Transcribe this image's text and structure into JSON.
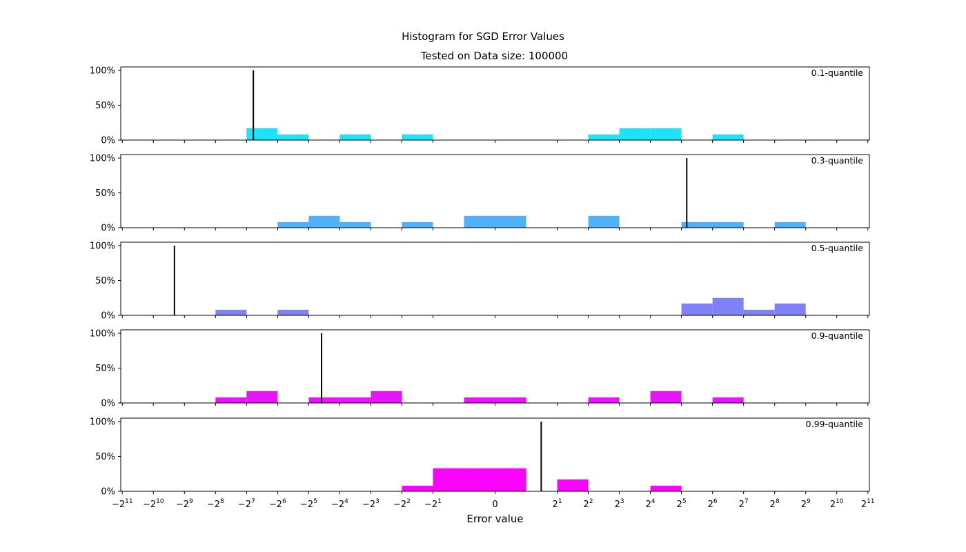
{
  "chart_data": {
    "type": "bar",
    "title": "Histogram for SGD Error Values",
    "subtitle": "Tested on Data size: 100000",
    "xlabel": "Error value",
    "x_scale": "symlog base 2",
    "x_tick_labels": [
      "−2^11",
      "−2^10",
      "−2^9",
      "−2^8",
      "−2^7",
      "−2^6",
      "−2^5",
      "−2^4",
      "−2^3",
      "−2^2",
      "−2^1",
      "0",
      "2^1",
      "2^2",
      "2^3",
      "2^4",
      "2^5",
      "2^6",
      "2^7",
      "2^8",
      "2^9",
      "2^10",
      "2^11"
    ],
    "y_tick_labels": [
      "0%",
      "50%",
      "100%"
    ],
    "ylim": [
      0,
      1.05
    ],
    "bin_edges": [
      -2048,
      -1024,
      -512,
      -256,
      -128,
      -64,
      -32,
      -16,
      -8,
      -4,
      -2,
      -1,
      0,
      1,
      2,
      4,
      8,
      16,
      32,
      64,
      128,
      256,
      512,
      1024,
      2048
    ],
    "panels": [
      {
        "label": "0.1-quantile",
        "color": "#1ee3f8",
        "quantile_marker": -110,
        "bins": [
          {
            "from": -128,
            "to": -64,
            "value": 0.17
          },
          {
            "from": -64,
            "to": -32,
            "value": 0.08
          },
          {
            "from": -16,
            "to": -8,
            "value": 0.08
          },
          {
            "from": -4,
            "to": -2,
            "value": 0.08
          },
          {
            "from": 4,
            "to": 8,
            "value": 0.08
          },
          {
            "from": 8,
            "to": 16,
            "value": 0.17
          },
          {
            "from": 16,
            "to": 32,
            "value": 0.17
          },
          {
            "from": 64,
            "to": 128,
            "value": 0.08
          }
        ]
      },
      {
        "label": "0.3-quantile",
        "color": "#4db2f8",
        "quantile_marker": 36,
        "bins": [
          {
            "from": -64,
            "to": -32,
            "value": 0.08
          },
          {
            "from": -32,
            "to": -16,
            "value": 0.17
          },
          {
            "from": -16,
            "to": -8,
            "value": 0.08
          },
          {
            "from": -4,
            "to": -2,
            "value": 0.08
          },
          {
            "from": -1,
            "to": 0,
            "value": 0.17
          },
          {
            "from": 0,
            "to": 1,
            "value": 0.17
          },
          {
            "from": 4,
            "to": 8,
            "value": 0.17
          },
          {
            "from": 32,
            "to": 64,
            "value": 0.08
          },
          {
            "from": 64,
            "to": 128,
            "value": 0.08
          },
          {
            "from": 256,
            "to": 512,
            "value": 0.08
          }
        ]
      },
      {
        "label": "0.5-quantile",
        "color": "#8080f8",
        "quantile_marker": -640,
        "bins": [
          {
            "from": -256,
            "to": -128,
            "value": 0.08
          },
          {
            "from": -64,
            "to": -32,
            "value": 0.08
          },
          {
            "from": 32,
            "to": 64,
            "value": 0.17
          },
          {
            "from": 64,
            "to": 128,
            "value": 0.25
          },
          {
            "from": 128,
            "to": 256,
            "value": 0.08
          },
          {
            "from": 256,
            "to": 512,
            "value": 0.17
          }
        ]
      },
      {
        "label": "0.9-quantile",
        "color": "#ea14f8",
        "quantile_marker": -24,
        "bins": [
          {
            "from": -256,
            "to": -128,
            "value": 0.08
          },
          {
            "from": -128,
            "to": -64,
            "value": 0.17
          },
          {
            "from": -32,
            "to": -16,
            "value": 0.08
          },
          {
            "from": -16,
            "to": -8,
            "value": 0.08
          },
          {
            "from": -8,
            "to": -4,
            "value": 0.17
          },
          {
            "from": -1,
            "to": 0,
            "value": 0.08
          },
          {
            "from": 0,
            "to": 1,
            "value": 0.08
          },
          {
            "from": 4,
            "to": 8,
            "value": 0.08
          },
          {
            "from": 16,
            "to": 32,
            "value": 0.17
          },
          {
            "from": 64,
            "to": 128,
            "value": 0.08
          }
        ]
      },
      {
        "label": "0.99-quantile",
        "color": "#ff00ff",
        "quantile_marker": 1.4,
        "bins": [
          {
            "from": -4,
            "to": -2,
            "value": 0.08
          },
          {
            "from": -2,
            "to": -1,
            "value": 0.33
          },
          {
            "from": -1,
            "to": 0,
            "value": 0.33
          },
          {
            "from": 0,
            "to": 1,
            "value": 0.33
          },
          {
            "from": 2,
            "to": 4,
            "value": 0.17
          },
          {
            "from": 16,
            "to": 32,
            "value": 0.08
          }
        ]
      }
    ]
  }
}
